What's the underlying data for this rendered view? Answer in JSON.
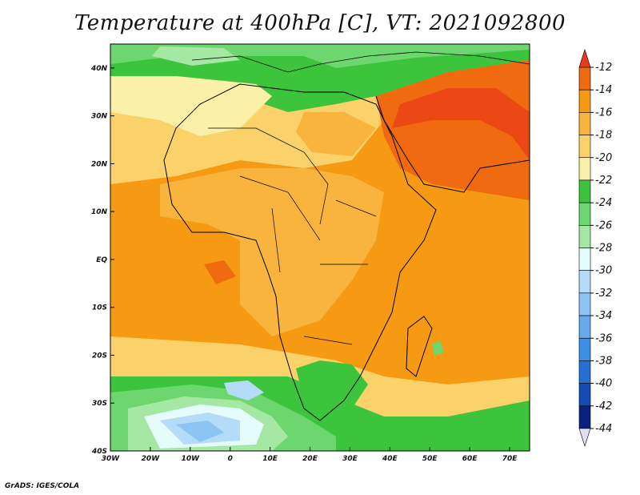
{
  "chart_data": {
    "type": "heatmap",
    "title": "Temperature at 400hPa [C], VT: 2021092800",
    "variable": "Temperature at 400hPa",
    "units": "C",
    "valid_time": "2021092800",
    "x_ticks": [
      "30W",
      "20W",
      "10W",
      "0",
      "10E",
      "20E",
      "30E",
      "40E",
      "50E",
      "60E",
      "70E"
    ],
    "y_ticks": [
      "40N",
      "30N",
      "20N",
      "10N",
      "EQ",
      "10S",
      "20S",
      "30S",
      "40S"
    ],
    "x_values": [
      -30,
      -20,
      -10,
      0,
      10,
      20,
      30,
      40,
      50,
      60,
      70
    ],
    "y_values": [
      40,
      30,
      20,
      10,
      0,
      -10,
      -20,
      -30,
      -40
    ],
    "xlim": [
      -30,
      75
    ],
    "ylim": [
      -40,
      45
    ],
    "colorbar": {
      "labels": [
        "-12",
        "-14",
        "-16",
        "-18",
        "-20",
        "-22",
        "-24",
        "-26",
        "-28",
        "-30",
        "-32",
        "-34",
        "-36",
        "-38",
        "-40",
        "-42",
        "-44"
      ],
      "values": [
        -12,
        -14,
        -16,
        -18,
        -20,
        -22,
        -24,
        -26,
        -28,
        -30,
        -32,
        -34,
        -36,
        -38,
        -40,
        -42,
        -44
      ],
      "colors": [
        "#e83a1a",
        "#f06a0f",
        "#f59a12",
        "#f8b43c",
        "#fbd26a",
        "#fbf0a8",
        "#3cc43c",
        "#6ed66e",
        "#a4e8a4",
        "#e4fcfc",
        "#b4dcf8",
        "#8cc4f4",
        "#64acec",
        "#3c90e4",
        "#2470d4",
        "#144cb4",
        "#0c2080"
      ]
    }
  },
  "footer": {
    "credit": "GrADS: IGES/COLA"
  }
}
